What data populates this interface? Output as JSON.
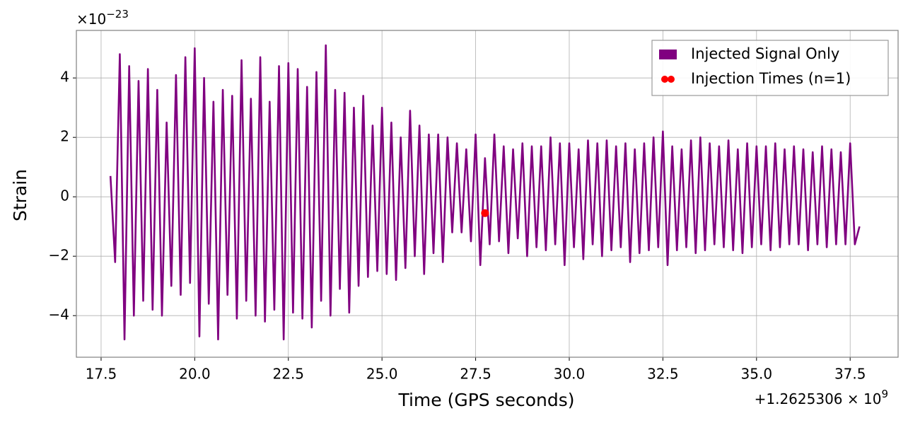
{
  "chart_data": {
    "type": "line",
    "x_label": "Time (GPS seconds)",
    "y_label": "Strain",
    "x_offset_text": "+1.2625306 × 10",
    "x_offset_exponent": "9",
    "y_scale_text": "×10",
    "y_scale_exponent": "−23",
    "xlim": [
      16.84,
      38.78
    ],
    "ylim": [
      -5.4,
      5.6
    ],
    "xticks": [
      {
        "value": 17.5,
        "label": "17.5"
      },
      {
        "value": 20,
        "label": "20.0"
      },
      {
        "value": 22.5,
        "label": "22.5"
      },
      {
        "value": 25,
        "label": "25.0"
      },
      {
        "value": 27.5,
        "label": "27.5"
      },
      {
        "value": 30,
        "label": "30.0"
      },
      {
        "value": 32.5,
        "label": "32.5"
      },
      {
        "value": 35,
        "label": "35.0"
      },
      {
        "value": 37.5,
        "label": "37.5"
      }
    ],
    "yticks": [
      {
        "value": -4,
        "label": "−4"
      },
      {
        "value": -2,
        "label": "−2"
      },
      0,
      2,
      4
    ],
    "grid": true,
    "legend": "upper right",
    "series": [
      {
        "name": "Injected Signal Only",
        "type": "line",
        "color": "#800080",
        "x": [
          17.75,
          17.875,
          18.0,
          18.125,
          18.25,
          18.375,
          18.5,
          18.625,
          18.75,
          18.875,
          19.0,
          19.125,
          19.25,
          19.375,
          19.5,
          19.625,
          19.75,
          19.875,
          20.0,
          20.125,
          20.25,
          20.375,
          20.5,
          20.625,
          20.75,
          20.875,
          21.0,
          21.125,
          21.25,
          21.375,
          21.5,
          21.625,
          21.75,
          21.875,
          22.0,
          22.125,
          22.25,
          22.375,
          22.5,
          22.625,
          22.75,
          22.875,
          23.0,
          23.125,
          23.25,
          23.375,
          23.5,
          23.625,
          23.75,
          23.875,
          24.0,
          24.125,
          24.25,
          24.375,
          24.5,
          24.625,
          24.75,
          24.875,
          25.0,
          25.125,
          25.25,
          25.375,
          25.5,
          25.625,
          25.75,
          25.875,
          26.0,
          26.125,
          26.25,
          26.375,
          26.5,
          26.625,
          26.75,
          26.875,
          27.0,
          27.125,
          27.25,
          27.375,
          27.5,
          27.625,
          27.75,
          27.875,
          28.0,
          28.125,
          28.25,
          28.375,
          28.5,
          28.625,
          28.75,
          28.875,
          29.0,
          29.125,
          29.25,
          29.375,
          29.5,
          29.625,
          29.75,
          29.875,
          30.0,
          30.125,
          30.25,
          30.375,
          30.5,
          30.625,
          30.75,
          30.875,
          31.0,
          31.125,
          31.25,
          31.375,
          31.5,
          31.625,
          31.75,
          31.875,
          32.0,
          32.125,
          32.25,
          32.375,
          32.5,
          32.625,
          32.75,
          32.875,
          33.0,
          33.125,
          33.25,
          33.375,
          33.5,
          33.625,
          33.75,
          33.875,
          34.0,
          34.125,
          34.25,
          34.375,
          34.5,
          34.625,
          34.75,
          34.875,
          35.0,
          35.125,
          35.25,
          35.375,
          35.5,
          35.625,
          35.75,
          35.875,
          36.0,
          36.125,
          36.25,
          36.375,
          36.5,
          36.625,
          36.75,
          36.875,
          37.0,
          37.125,
          37.25,
          37.375,
          37.5,
          37.625,
          37.75
        ],
        "values": [
          0.7,
          -2.2,
          4.8,
          -4.8,
          4.4,
          -4.0,
          3.9,
          -3.5,
          4.3,
          -3.8,
          3.6,
          -4.0,
          2.5,
          -3.0,
          4.1,
          -3.3,
          4.7,
          -2.9,
          5.0,
          -4.7,
          4.0,
          -3.6,
          3.2,
          -4.8,
          3.6,
          -3.3,
          3.4,
          -4.1,
          4.6,
          -3.5,
          3.3,
          -4.0,
          4.7,
          -4.2,
          3.2,
          -3.8,
          4.4,
          -4.8,
          4.5,
          -3.9,
          4.3,
          -4.1,
          3.7,
          -4.4,
          4.2,
          -3.5,
          5.1,
          -4.0,
          3.6,
          -3.1,
          3.5,
          -3.9,
          3.0,
          -3.0,
          3.4,
          -2.7,
          2.4,
          -2.5,
          3.0,
          -2.6,
          2.5,
          -2.8,
          2.0,
          -2.4,
          2.9,
          -2.0,
          2.4,
          -2.6,
          2.1,
          -1.9,
          2.1,
          -2.2,
          2.0,
          -1.2,
          1.8,
          -1.2,
          1.6,
          -1.5,
          2.1,
          -2.3,
          1.3,
          -1.6,
          2.1,
          -1.5,
          1.7,
          -1.9,
          1.6,
          -1.4,
          1.8,
          -2.0,
          1.7,
          -1.7,
          1.7,
          -1.8,
          2.0,
          -1.6,
          1.8,
          -2.3,
          1.8,
          -1.7,
          1.6,
          -2.1,
          1.9,
          -1.6,
          1.8,
          -2.0,
          1.9,
          -1.8,
          1.7,
          -1.7,
          1.8,
          -2.2,
          1.6,
          -1.9,
          1.8,
          -1.8,
          2.0,
          -1.7,
          2.2,
          -2.3,
          1.7,
          -1.8,
          1.6,
          -1.7,
          1.9,
          -1.9,
          2.0,
          -1.8,
          1.8,
          -1.6,
          1.7,
          -1.7,
          1.9,
          -1.8,
          1.6,
          -1.9,
          1.8,
          -1.7,
          1.7,
          -1.6,
          1.7,
          -1.8,
          1.8,
          -1.7,
          1.6,
          -1.6,
          1.7,
          -1.6,
          1.6,
          -1.8,
          1.5,
          -1.6,
          1.7,
          -1.7,
          1.6,
          -1.6,
          1.5,
          -1.6,
          1.8,
          -1.6,
          -1.0
        ]
      },
      {
        "name": "Injection Times (n=1)",
        "type": "scatter",
        "color": "#ff0000",
        "x": [
          27.75
        ],
        "values": [
          -0.55
        ]
      }
    ]
  }
}
